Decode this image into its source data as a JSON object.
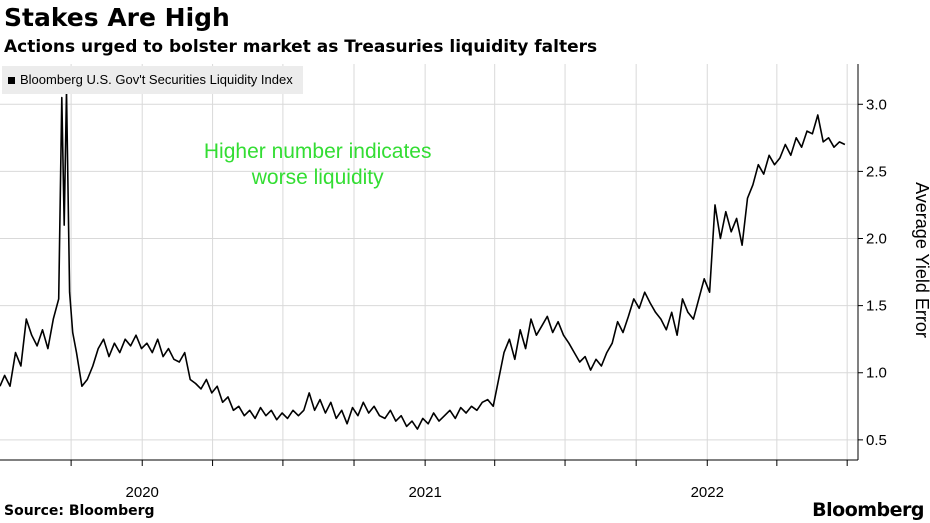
{
  "header": {
    "title": "Stakes Are High",
    "subtitle": "Actions urged to bolster market as Treasuries liquidity falters"
  },
  "footer": {
    "source": "Source: Bloomberg",
    "brand": "Bloomberg"
  },
  "colors": {
    "line": "#000000",
    "annotation": "#33dd33",
    "grid": "#d9d9d9",
    "legend_bg": "#ececec"
  },
  "chart_data": {
    "type": "line",
    "title": "Stakes Are High",
    "subtitle": "Actions urged to bolster market as Treasuries liquidity falters",
    "ylabel": "Average Yield Error",
    "xlabel": "",
    "ylim": [
      0.35,
      3.3
    ],
    "xlim": [
      "2019-07-01",
      "2022-07-15"
    ],
    "y_ticks": [
      0.5,
      1.0,
      1.5,
      2.0,
      2.5,
      3.0
    ],
    "y_tick_labels": [
      "0.5",
      "1.0",
      "1.5",
      "2.0",
      "2.5",
      "3.0"
    ],
    "x_tick_labels": [
      {
        "label": "2020",
        "date": "2020-01-01"
      },
      {
        "label": "2021",
        "date": "2021-01-01"
      },
      {
        "label": "2022",
        "date": "2022-01-01"
      }
    ],
    "y_axis_position": "right",
    "grid": true,
    "legend_position": "top-left",
    "annotation": {
      "lines": [
        "Higher number indicates",
        "worse liquidity"
      ],
      "date": "2020-08-15",
      "y": 2.6
    },
    "series": [
      {
        "name": "Bloomberg U.S. Gov't Securities Liquidity Index",
        "points": [
          [
            "2019-07-01",
            0.9
          ],
          [
            "2019-07-07",
            0.98
          ],
          [
            "2019-07-14",
            0.9
          ],
          [
            "2019-07-21",
            1.15
          ],
          [
            "2019-07-28",
            1.05
          ],
          [
            "2019-08-04",
            1.4
          ],
          [
            "2019-08-11",
            1.28
          ],
          [
            "2019-08-18",
            1.2
          ],
          [
            "2019-08-25",
            1.32
          ],
          [
            "2019-09-01",
            1.18
          ],
          [
            "2019-09-08",
            1.4
          ],
          [
            "2019-09-15",
            1.55
          ],
          [
            "2019-09-19",
            3.05
          ],
          [
            "2019-09-22",
            2.1
          ],
          [
            "2019-09-25",
            3.1
          ],
          [
            "2019-09-29",
            1.6
          ],
          [
            "2019-10-03",
            1.3
          ],
          [
            "2019-10-08",
            1.15
          ],
          [
            "2019-10-15",
            0.9
          ],
          [
            "2019-10-22",
            0.95
          ],
          [
            "2019-10-29",
            1.05
          ],
          [
            "2019-11-05",
            1.18
          ],
          [
            "2019-11-12",
            1.25
          ],
          [
            "2019-11-19",
            1.12
          ],
          [
            "2019-11-26",
            1.22
          ],
          [
            "2019-12-03",
            1.15
          ],
          [
            "2019-12-10",
            1.25
          ],
          [
            "2019-12-17",
            1.2
          ],
          [
            "2019-12-24",
            1.28
          ],
          [
            "2019-12-31",
            1.18
          ],
          [
            "2020-01-07",
            1.22
          ],
          [
            "2020-01-14",
            1.15
          ],
          [
            "2020-01-21",
            1.25
          ],
          [
            "2020-01-28",
            1.12
          ],
          [
            "2020-02-04",
            1.18
          ],
          [
            "2020-02-11",
            1.1
          ],
          [
            "2020-02-18",
            1.08
          ],
          [
            "2020-02-25",
            1.15
          ],
          [
            "2020-03-03",
            0.95
          ],
          [
            "2020-03-10",
            0.92
          ],
          [
            "2020-03-17",
            0.88
          ],
          [
            "2020-03-24",
            0.95
          ],
          [
            "2020-03-31",
            0.85
          ],
          [
            "2020-04-07",
            0.9
          ],
          [
            "2020-04-14",
            0.78
          ],
          [
            "2020-04-21",
            0.82
          ],
          [
            "2020-04-28",
            0.72
          ],
          [
            "2020-05-05",
            0.75
          ],
          [
            "2020-05-12",
            0.68
          ],
          [
            "2020-05-19",
            0.72
          ],
          [
            "2020-05-26",
            0.66
          ],
          [
            "2020-06-02",
            0.74
          ],
          [
            "2020-06-09",
            0.68
          ],
          [
            "2020-06-16",
            0.72
          ],
          [
            "2020-06-23",
            0.65
          ],
          [
            "2020-06-30",
            0.7
          ],
          [
            "2020-07-07",
            0.66
          ],
          [
            "2020-07-14",
            0.72
          ],
          [
            "2020-07-21",
            0.68
          ],
          [
            "2020-07-28",
            0.72
          ],
          [
            "2020-08-04",
            0.85
          ],
          [
            "2020-08-11",
            0.72
          ],
          [
            "2020-08-18",
            0.8
          ],
          [
            "2020-08-25",
            0.7
          ],
          [
            "2020-09-01",
            0.78
          ],
          [
            "2020-09-08",
            0.66
          ],
          [
            "2020-09-15",
            0.72
          ],
          [
            "2020-09-22",
            0.62
          ],
          [
            "2020-09-29",
            0.74
          ],
          [
            "2020-10-06",
            0.68
          ],
          [
            "2020-10-13",
            0.78
          ],
          [
            "2020-10-20",
            0.7
          ],
          [
            "2020-10-27",
            0.75
          ],
          [
            "2020-11-03",
            0.68
          ],
          [
            "2020-11-10",
            0.66
          ],
          [
            "2020-11-17",
            0.72
          ],
          [
            "2020-11-24",
            0.64
          ],
          [
            "2020-12-01",
            0.68
          ],
          [
            "2020-12-08",
            0.6
          ],
          [
            "2020-12-15",
            0.64
          ],
          [
            "2020-12-22",
            0.58
          ],
          [
            "2020-12-29",
            0.66
          ],
          [
            "2021-01-05",
            0.62
          ],
          [
            "2021-01-12",
            0.7
          ],
          [
            "2021-01-19",
            0.64
          ],
          [
            "2021-01-26",
            0.68
          ],
          [
            "2021-02-02",
            0.72
          ],
          [
            "2021-02-09",
            0.66
          ],
          [
            "2021-02-16",
            0.74
          ],
          [
            "2021-02-23",
            0.7
          ],
          [
            "2021-03-02",
            0.75
          ],
          [
            "2021-03-09",
            0.72
          ],
          [
            "2021-03-16",
            0.78
          ],
          [
            "2021-03-23",
            0.8
          ],
          [
            "2021-03-30",
            0.75
          ],
          [
            "2021-04-06",
            0.95
          ],
          [
            "2021-04-13",
            1.15
          ],
          [
            "2021-04-20",
            1.25
          ],
          [
            "2021-04-27",
            1.1
          ],
          [
            "2021-05-04",
            1.32
          ],
          [
            "2021-05-11",
            1.18
          ],
          [
            "2021-05-18",
            1.4
          ],
          [
            "2021-05-25",
            1.28
          ],
          [
            "2021-06-01",
            1.35
          ],
          [
            "2021-06-08",
            1.42
          ],
          [
            "2021-06-15",
            1.3
          ],
          [
            "2021-06-22",
            1.38
          ],
          [
            "2021-06-29",
            1.28
          ],
          [
            "2021-07-06",
            1.22
          ],
          [
            "2021-07-13",
            1.15
          ],
          [
            "2021-07-20",
            1.08
          ],
          [
            "2021-07-27",
            1.12
          ],
          [
            "2021-08-03",
            1.02
          ],
          [
            "2021-08-10",
            1.1
          ],
          [
            "2021-08-17",
            1.05
          ],
          [
            "2021-08-24",
            1.15
          ],
          [
            "2021-08-31",
            1.22
          ],
          [
            "2021-09-07",
            1.38
          ],
          [
            "2021-09-14",
            1.3
          ],
          [
            "2021-09-21",
            1.42
          ],
          [
            "2021-09-28",
            1.55
          ],
          [
            "2021-10-05",
            1.48
          ],
          [
            "2021-10-12",
            1.6
          ],
          [
            "2021-10-19",
            1.52
          ],
          [
            "2021-10-26",
            1.45
          ],
          [
            "2021-11-02",
            1.4
          ],
          [
            "2021-11-09",
            1.32
          ],
          [
            "2021-11-16",
            1.45
          ],
          [
            "2021-11-23",
            1.28
          ],
          [
            "2021-11-30",
            1.55
          ],
          [
            "2021-12-07",
            1.45
          ],
          [
            "2021-12-14",
            1.4
          ],
          [
            "2021-12-21",
            1.55
          ],
          [
            "2021-12-28",
            1.7
          ],
          [
            "2022-01-04",
            1.6
          ],
          [
            "2022-01-11",
            2.25
          ],
          [
            "2022-01-18",
            2.0
          ],
          [
            "2022-01-25",
            2.2
          ],
          [
            "2022-02-01",
            2.05
          ],
          [
            "2022-02-08",
            2.15
          ],
          [
            "2022-02-15",
            1.95
          ],
          [
            "2022-02-22",
            2.3
          ],
          [
            "2022-03-01",
            2.4
          ],
          [
            "2022-03-08",
            2.55
          ],
          [
            "2022-03-15",
            2.48
          ],
          [
            "2022-03-22",
            2.62
          ],
          [
            "2022-03-29",
            2.55
          ],
          [
            "2022-04-05",
            2.6
          ],
          [
            "2022-04-12",
            2.7
          ],
          [
            "2022-04-19",
            2.62
          ],
          [
            "2022-04-26",
            2.75
          ],
          [
            "2022-05-03",
            2.68
          ],
          [
            "2022-05-10",
            2.8
          ],
          [
            "2022-05-17",
            2.78
          ],
          [
            "2022-05-24",
            2.92
          ],
          [
            "2022-05-31",
            2.72
          ],
          [
            "2022-06-07",
            2.75
          ],
          [
            "2022-06-14",
            2.68
          ],
          [
            "2022-06-21",
            2.72
          ],
          [
            "2022-06-28",
            2.7
          ]
        ]
      }
    ]
  }
}
